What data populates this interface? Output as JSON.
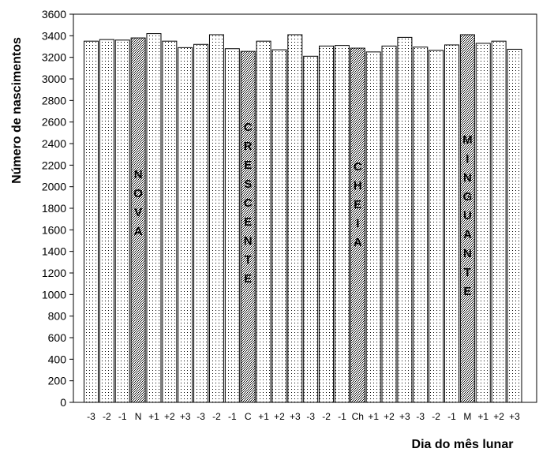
{
  "chart_data": {
    "type": "bar",
    "categories": [
      "-3",
      "-2",
      "-1",
      "N",
      "+1",
      "+2",
      "+3",
      "-3",
      "-2",
      "-1",
      "C",
      "+1",
      "+2",
      "+3",
      "-3",
      "-2",
      "-1",
      "Ch",
      "+1",
      "+2",
      "+3",
      "-3",
      "-2",
      "-1",
      "M",
      "+1",
      "+2",
      "+3"
    ],
    "values": [
      3350,
      3365,
      3360,
      3380,
      3420,
      3350,
      3290,
      3320,
      3410,
      3280,
      3255,
      3350,
      3270,
      3410,
      3210,
      3305,
      3310,
      3285,
      3250,
      3305,
      3385,
      3295,
      3265,
      3315,
      3410,
      3330,
      3350,
      3275
    ],
    "xlabel": "Dia do mês lunar",
    "ylabel": "Número de nascimentos",
    "ylim": [
      0,
      3600
    ],
    "yticks": [
      0,
      200,
      400,
      600,
      800,
      1000,
      1200,
      1400,
      1600,
      1800,
      2000,
      2200,
      2400,
      2600,
      2800,
      3000,
      3200,
      3400,
      3600
    ],
    "grid": false,
    "annotations": [
      {
        "text": "NOVA",
        "category_index": 3
      },
      {
        "text": "CRESCENTE",
        "category_index": 10
      },
      {
        "text": "CHEIA",
        "category_index": 17
      },
      {
        "text": "MINGUANTE",
        "category_index": 24
      }
    ],
    "colors": {
      "plain_bar_fill": "#ffffff",
      "phase_bar_fill": "#bfbfbf",
      "stroke": "#000000"
    }
  }
}
